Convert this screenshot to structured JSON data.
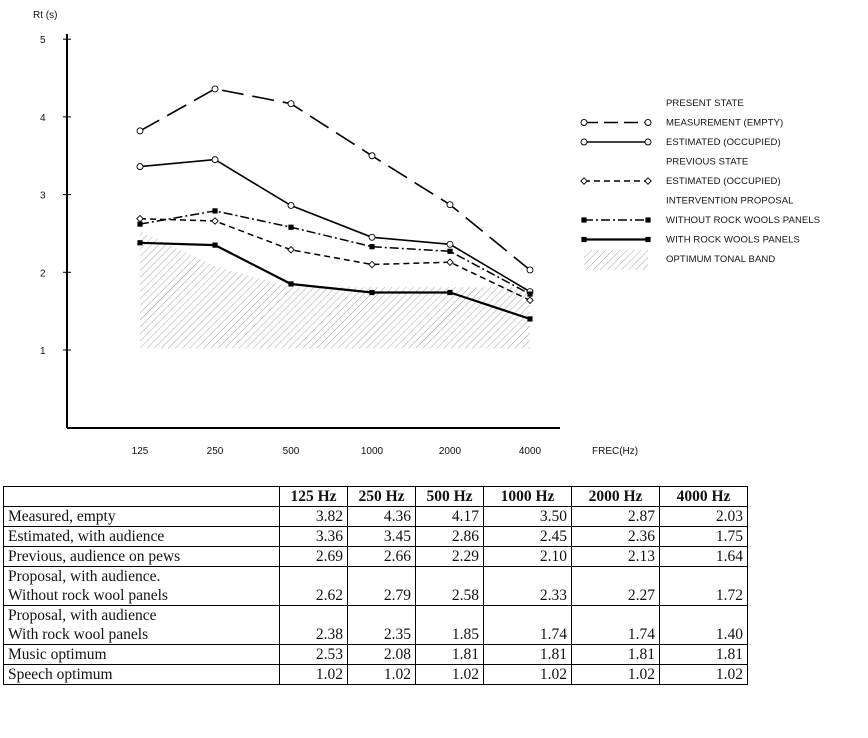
{
  "chart_data": {
    "type": "line",
    "ylabel": "Rt (s)",
    "xlabel": "FREC(Hz)",
    "categories": [
      "125",
      "250",
      "500",
      "1000",
      "2000",
      "4000"
    ],
    "y_ticks": [
      "1",
      "2",
      "3",
      "4",
      "5"
    ],
    "ylim": [
      0.2,
      5
    ],
    "grid": false,
    "legend_position": "right",
    "legend_groups": [
      {
        "heading": "PRESENT STATE",
        "entries": [
          "MEASUREMENT (EMPTY)",
          "ESTIMATED (OCCUPIED)"
        ]
      },
      {
        "heading": "PREVIOUS STATE",
        "entries": [
          "ESTIMATED (OCCUPIED)"
        ]
      },
      {
        "heading": "INTERVENTION PROPOSAL",
        "entries": [
          "WITHOUT ROCK WOOLS PANELS",
          "WITH ROCK WOOLS PANELS"
        ]
      },
      {
        "heading": "",
        "entries": [
          "OPTIMUM TONAL BAND"
        ]
      }
    ],
    "series": [
      {
        "name": "MEASUREMENT (EMPTY)",
        "style": "long-dash",
        "marker": "open-circle",
        "values": [
          3.82,
          4.36,
          4.17,
          3.5,
          2.87,
          2.03
        ]
      },
      {
        "name": "ESTIMATED (OCCUPIED)",
        "style": "solid",
        "marker": "open-circle",
        "values": [
          3.36,
          3.45,
          2.86,
          2.45,
          2.36,
          1.75
        ]
      },
      {
        "name": "ESTIMATED (OCCUPIED)",
        "style": "short-dash",
        "marker": "open-diamond",
        "values": [
          2.69,
          2.66,
          2.29,
          2.1,
          2.13,
          1.64
        ]
      },
      {
        "name": "WITHOUT ROCK WOOLS PANELS",
        "style": "dash-dot",
        "marker": "filled-square",
        "values": [
          2.62,
          2.79,
          2.58,
          2.33,
          2.27,
          1.72
        ]
      },
      {
        "name": "WITH ROCK WOOLS PANELS",
        "style": "solid-thick",
        "marker": "filled-square",
        "values": [
          2.38,
          2.35,
          1.85,
          1.74,
          1.74,
          1.4
        ]
      }
    ],
    "band": {
      "name": "OPTIMUM TONAL BAND",
      "upper": [
        2.53,
        2.08,
        1.81,
        1.81,
        1.81,
        1.81
      ],
      "lower": [
        1.02,
        1.02,
        1.02,
        1.02,
        1.02,
        1.02
      ]
    }
  },
  "table": {
    "headers": [
      "",
      "125 Hz",
      "250 Hz",
      "500  Hz",
      "1000 Hz",
      "2000 Hz",
      "4000 Hz"
    ],
    "rows": [
      {
        "label": "Measured, empty",
        "values": [
          "3.82",
          "4.36",
          "4.17",
          "3.50",
          "2.87",
          "2.03"
        ]
      },
      {
        "label": "Estimated, with audience",
        "values": [
          "3.36",
          "3.45",
          "2.86",
          "2.45",
          "2.36",
          "1.75"
        ]
      },
      {
        "label": "Previous, audience on pews",
        "values": [
          "2.69",
          "2.66",
          "2.29",
          "2.10",
          "2.13",
          "1.64"
        ]
      },
      {
        "label": "Proposal, with audience.\nWithout rock wool panels",
        "values": [
          "2.62",
          "2.79",
          "2.58",
          "2.33",
          "2.27",
          "1.72"
        ]
      },
      {
        "label": "Proposal, with audience\nWith rock wool panels",
        "values": [
          "2.38",
          "2.35",
          "1.85",
          "1.74",
          "1.74",
          "1.40"
        ]
      },
      {
        "label": "Music optimum",
        "values": [
          "2.53",
          "2.08",
          "1.81",
          "1.81",
          "1.81",
          "1.81"
        ]
      },
      {
        "label": "Speech optimum",
        "values": [
          "1.02",
          "1.02",
          "1.02",
          "1.02",
          "1.02",
          "1.02"
        ]
      }
    ]
  }
}
